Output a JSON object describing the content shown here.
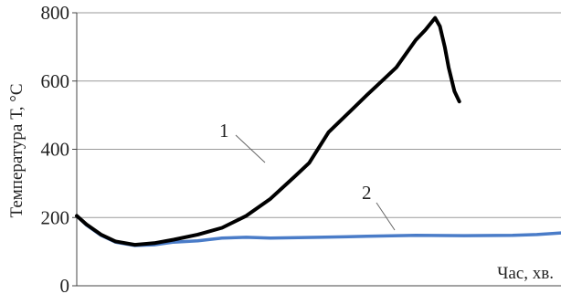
{
  "chart_data": {
    "type": "line",
    "title": "",
    "xlabel": "Час, хв.",
    "ylabel": "Температура Т, °С",
    "ylim": [
      0,
      800
    ],
    "xlim": [
      0,
      100
    ],
    "yticks": [
      "0",
      "200",
      "400",
      "600",
      "800"
    ],
    "grid": true,
    "legend": "none",
    "series": [
      {
        "name": "1",
        "color": "#000000",
        "x": [
          0,
          2,
          5,
          8,
          12,
          16,
          20,
          25,
          30,
          35,
          40,
          45,
          48,
          52,
          56,
          60,
          63,
          66,
          68,
          70,
          72,
          74,
          75,
          76,
          76.8,
          78,
          79
        ],
        "y": [
          205,
          180,
          150,
          130,
          120,
          125,
          135,
          150,
          170,
          205,
          255,
          320,
          360,
          450,
          505,
          560,
          600,
          640,
          680,
          720,
          750,
          785,
          760,
          700,
          640,
          570,
          540
        ]
      },
      {
        "name": "2",
        "color": "#4a7cc8",
        "x": [
          0,
          2,
          5,
          8,
          12,
          16,
          20,
          25,
          30,
          35,
          40,
          50,
          60,
          70,
          80,
          90,
          95,
          100
        ],
        "y": [
          205,
          178,
          148,
          128,
          118,
          120,
          128,
          132,
          140,
          142,
          140,
          142,
          145,
          148,
          147,
          148,
          150,
          155
        ]
      }
    ]
  }
}
